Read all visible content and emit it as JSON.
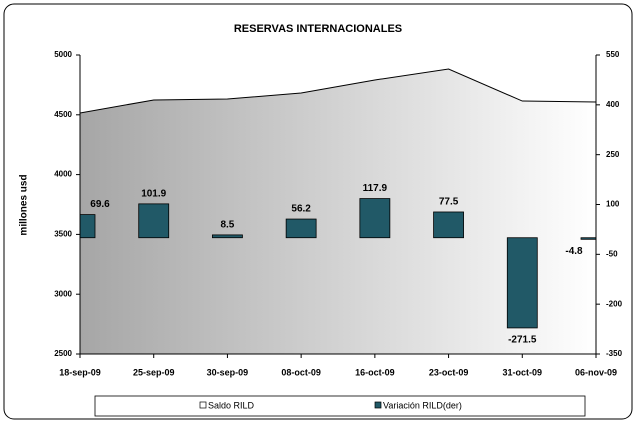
{
  "chart_data": {
    "type": "area-bar",
    "title": "RESERVAS INTERNACIONALES",
    "y_label": "millones usd",
    "categories": [
      "18-sep-09",
      "25-sep-09",
      "30-sep-09",
      "08-oct-09",
      "16-oct-09",
      "23-oct-09",
      "31-oct-09",
      "06-nov-09"
    ],
    "series": [
      {
        "name": "Saldo RILD",
        "type": "area",
        "color": "#bdbdbd",
        "values": [
          4515,
          4624,
          4632,
          4682,
          4791,
          4883,
          4615,
          4607
        ]
      },
      {
        "name": "Variación RILD(der)",
        "type": "bar",
        "axis": "y2",
        "color": "#215967",
        "values": [
          69.6,
          101.9,
          8.5,
          56.2,
          117.9,
          77.5,
          -271.5,
          -4.8
        ]
      }
    ],
    "ylim": [
      2500,
      5000
    ],
    "yticks": [
      2500,
      3000,
      3500,
      4000,
      4500,
      5000
    ],
    "y2lim": [
      -350,
      550
    ],
    "y2ticks": [
      -350,
      -200,
      -50,
      100,
      250,
      400,
      550
    ]
  }
}
